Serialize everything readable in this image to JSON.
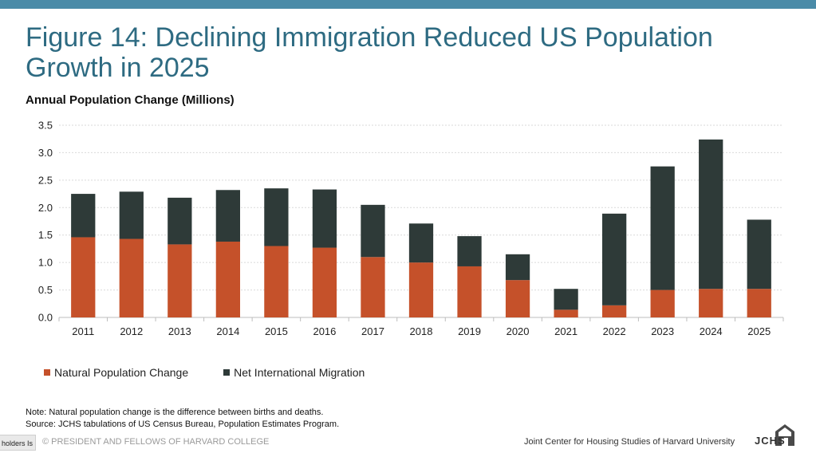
{
  "colors": {
    "accent_bar": "#4a8ba8",
    "title": "#2e6b82",
    "natural": "#c5512a",
    "migration": "#2e3a38",
    "gridline": "#d9d9d9"
  },
  "header": {
    "title": "Figure 14: Declining Immigration Reduced US Population Growth in 2025"
  },
  "chart_data": {
    "type": "bar",
    "stacked": true,
    "title": "Annual Population Change (Millions)",
    "categories": [
      "2011",
      "2012",
      "2013",
      "2014",
      "2015",
      "2016",
      "2017",
      "2018",
      "2019",
      "2020",
      "2021",
      "2022",
      "2023",
      "2024",
      "2025"
    ],
    "series": [
      {
        "name": "Natural Population Change",
        "values": [
          1.46,
          1.43,
          1.33,
          1.38,
          1.3,
          1.27,
          1.1,
          1.0,
          0.93,
          0.68,
          0.14,
          0.22,
          0.5,
          0.52,
          0.52
        ]
      },
      {
        "name": "Net International Migration",
        "values": [
          0.79,
          0.86,
          0.85,
          0.94,
          1.05,
          1.06,
          0.95,
          0.71,
          0.55,
          0.47,
          0.38,
          1.67,
          2.25,
          2.72,
          1.26
        ]
      }
    ],
    "ylim": [
      0,
      3.5
    ],
    "yticks": [
      "0.0",
      "0.5",
      "1.0",
      "1.5",
      "2.0",
      "2.5",
      "3.0",
      "3.5"
    ],
    "grid": true,
    "legend_position": "bottom-left"
  },
  "notes": {
    "line1": "Note: Natural population change is the difference between births and deaths.",
    "line2": "Source: JCHS tabulations of US Census Bureau, Population Estimates Program."
  },
  "footer": {
    "tab_label": "holders Is",
    "copyright": "© PRESIDENT AND FELLOWS OF HARVARD COLLEGE",
    "organization": "Joint Center for Housing Studies of Harvard University",
    "logo_text": "JCHS"
  }
}
